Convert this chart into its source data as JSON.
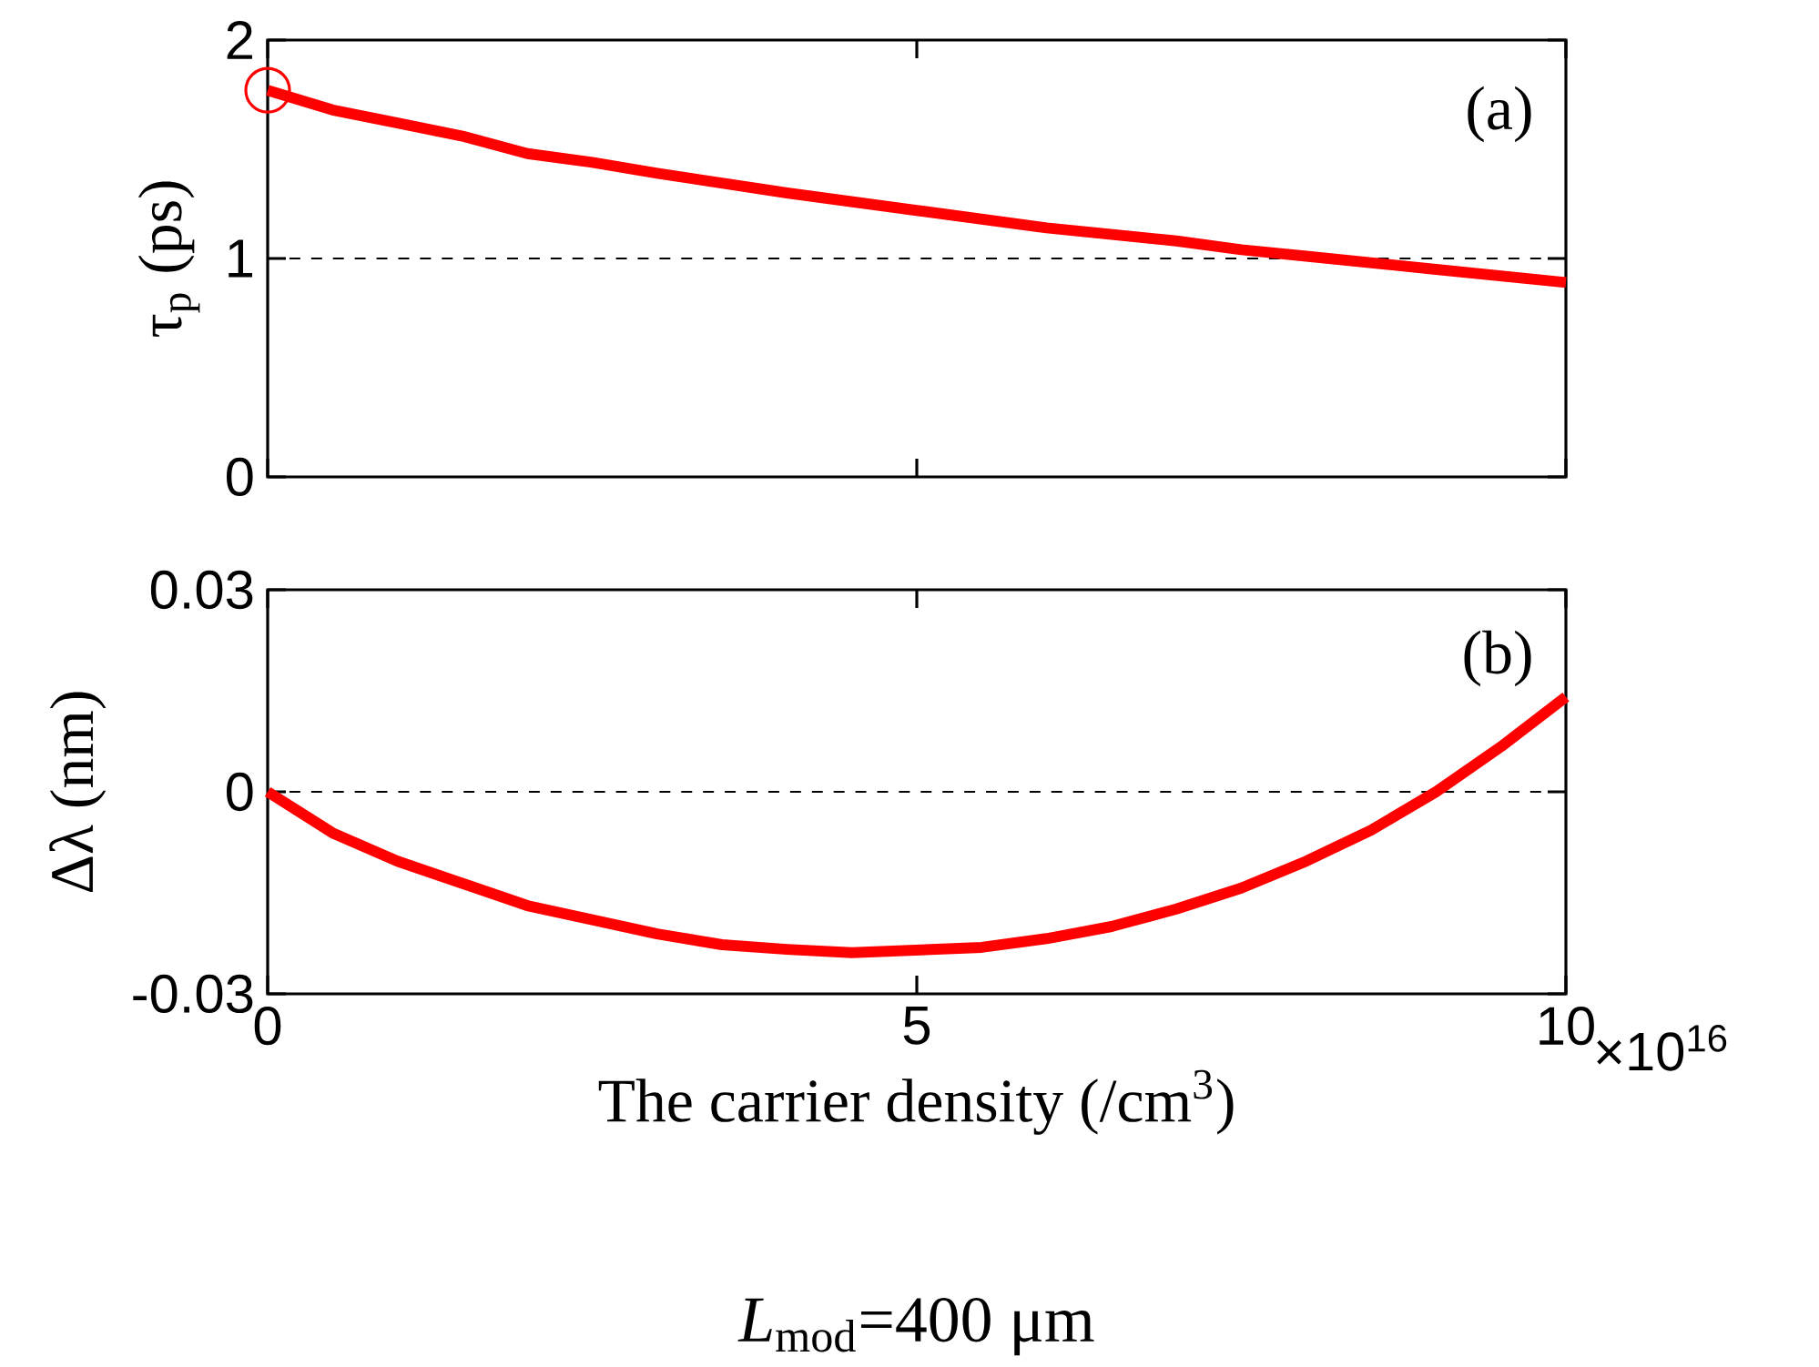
{
  "chart_data": [
    {
      "type": "line",
      "ylabel": "τ$_{p}$ (ps)",
      "xlim": [
        0,
        10
      ],
      "xticks": [
        0,
        5,
        10
      ],
      "ylim": [
        0,
        2
      ],
      "yticks": [
        0,
        1,
        2
      ],
      "tick_labels": "y",
      "grid": false,
      "ref_lines": [
        {
          "axis": "y",
          "value": 1,
          "color": "#000000",
          "line_style": "dashed"
        }
      ],
      "annotations": [
        "(a)"
      ],
      "series": [
        {
          "color": "#ff0000",
          "marker": "none",
          "line_style": "solid",
          "x": [
            0,
            0.5,
            1,
            1.5,
            2,
            2.5,
            3,
            4,
            5,
            6,
            7,
            7.5,
            8,
            9,
            10
          ],
          "values": [
            1.77,
            1.68,
            1.62,
            1.56,
            1.48,
            1.44,
            1.39,
            1.3,
            1.22,
            1.14,
            1.08,
            1.04,
            1.01,
            0.95,
            0.89
          ]
        },
        {
          "type": "scatter",
          "color": "#ff0000",
          "marker": "circle",
          "x": [
            0
          ],
          "values": [
            1.77
          ]
        }
      ]
    },
    {
      "type": "line",
      "xlabel": "The carrier density (/cm$^{3}$)",
      "ylabel": "Δλ (nm)",
      "xlim": [
        0,
        10
      ],
      "xticks": [
        0,
        5,
        10
      ],
      "ylim": [
        -0.03,
        0.03
      ],
      "yticks": [
        -0.03,
        0,
        0.03
      ],
      "grid": false,
      "ref_lines": [
        {
          "axis": "y",
          "value": 0,
          "color": "#000000",
          "line_style": "dashed"
        }
      ],
      "annotations": [
        "(b)",
        "×10$^{16}$",
        "*L*$_{mod}$=400 μm"
      ],
      "series": [
        {
          "color": "#ff0000",
          "marker": "none",
          "line_style": "solid",
          "x": [
            0,
            0.5,
            1,
            1.5,
            2,
            3,
            3.5,
            4,
            4.5,
            5.5,
            6,
            6.5,
            7,
            7.5,
            8,
            8.5,
            9,
            9.5,
            10
          ],
          "values": [
            0,
            -0.0061,
            -0.0103,
            -0.0136,
            -0.0169,
            -0.0211,
            -0.0227,
            -0.0234,
            -0.0239,
            -0.0231,
            -0.0218,
            -0.02,
            -0.0174,
            -0.0143,
            -0.0103,
            -0.0057,
            0,
            0.0067,
            0.0141
          ]
        }
      ]
    }
  ]
}
